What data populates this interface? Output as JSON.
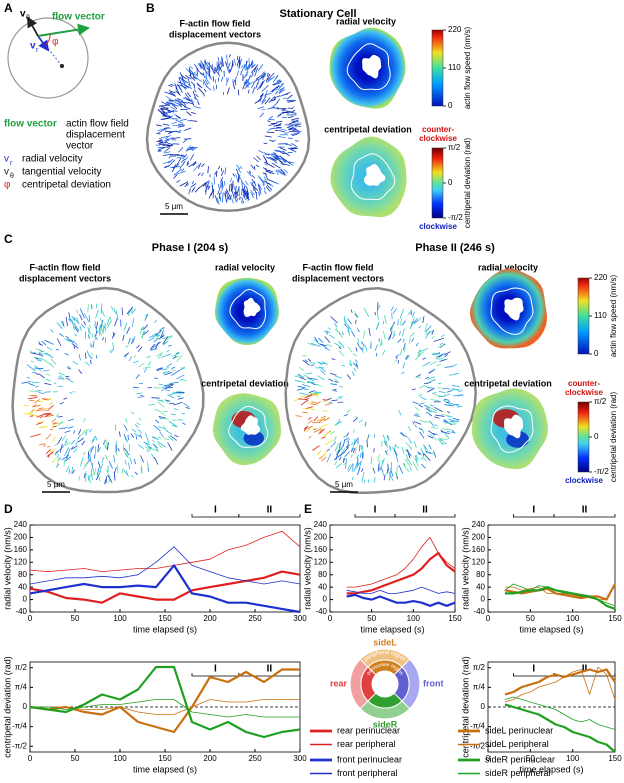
{
  "panel_a": {
    "label": "A",
    "diagram": {
      "vt": {
        "symbol": "v",
        "sub": "θ"
      },
      "vr": {
        "symbol": "v",
        "sub": "r"
      },
      "flow_vector": "flow vector",
      "phi": "φ"
    },
    "legend": [
      {
        "symbol": "flow vector",
        "text": [
          "actin flow field",
          "displacement",
          "vector"
        ]
      },
      {
        "symbol": "v",
        "sub": "r",
        "text": [
          "radial velocity"
        ]
      },
      {
        "symbol": "v",
        "sub": "θ",
        "text": [
          "tangential velocity"
        ]
      },
      {
        "symbol": "φ",
        "text": [
          "centripetal deviation"
        ]
      }
    ]
  },
  "panel_b": {
    "label": "B",
    "title": "Stationary Cell",
    "flow_title": [
      "F-actin flow field",
      "displacement vectors"
    ],
    "radial_title": "radial velocity",
    "deviation_title": "centripetal deviation",
    "scale": "5 µm"
  },
  "panel_c": {
    "label": "C",
    "phases": [
      {
        "title": "Phase I (204 s)",
        "flow_title": [
          "F-actin flow field",
          "displacement vectors"
        ],
        "radial_title": "radial velocity",
        "deviation_title": "centripetal deviation",
        "scale": "5 µm"
      },
      {
        "title": "Phase II (246 s)",
        "flow_title": [
          "F-actin flow field",
          "displacement vectors"
        ],
        "radial_title": "radial velocity",
        "deviation_title": "centripetal deviation",
        "scale": "5 µm"
      }
    ]
  },
  "colorbars": {
    "speed": {
      "label": "actin flow speed (nm/s)",
      "lim": [
        0,
        220
      ],
      "ticks": [
        0,
        110,
        220
      ]
    },
    "deviation": {
      "label": "centripetal deviation (rad)",
      "lim": [
        -1.5708,
        1.5708
      ],
      "ticks": [
        {
          "value": 1.5708,
          "label": "π/2"
        },
        0,
        {
          "value": -1.5708,
          "label": "-π/2"
        }
      ],
      "top_label": [
        "counter-",
        "clockwise"
      ],
      "bottom_label": "clockwise"
    }
  },
  "panel_d": {
    "label": "D"
  },
  "panel_e": {
    "label": "E",
    "regions": {
      "sideL": "sideL",
      "sideR": "sideR",
      "rear": "rear",
      "front": "front",
      "peripheral": "peripheral region",
      "perinuclear": "perinuclear region"
    }
  },
  "chart_data": [
    {
      "type": "line",
      "x": [
        0,
        20,
        40,
        60,
        80,
        100,
        120,
        140,
        160,
        180,
        200,
        220,
        240,
        260,
        280,
        300
      ],
      "xlim": [
        0,
        300
      ],
      "xticks": [
        0,
        50,
        100,
        150,
        200,
        250,
        300
      ],
      "ylim": [
        -40,
        240
      ],
      "yticks": [
        -40,
        0,
        40,
        80,
        120,
        160,
        200,
        240
      ],
      "xlabel": "time elapsed (s)",
      "ylabel": "radial velocity (nm/s)",
      "phases": [
        {
          "label": "I",
          "range": [
            180,
            232
          ]
        },
        {
          "label": "II",
          "range": [
            232,
            300
          ]
        }
      ],
      "series": [
        {
          "name": "rear perinuclear",
          "color": "#e02020",
          "linewidth": 2.2,
          "values": [
            35,
            25,
            5,
            0,
            -10,
            20,
            10,
            0,
            0,
            30,
            40,
            50,
            60,
            70,
            90,
            80
          ]
        },
        {
          "name": "rear peripheral",
          "color": "#e02020",
          "linewidth": 0.8,
          "values": [
            95,
            90,
            95,
            100,
            90,
            95,
            100,
            100,
            110,
            120,
            130,
            160,
            175,
            200,
            220,
            170
          ]
        },
        {
          "name": "front perinuclear",
          "color": "#2030d0",
          "linewidth": 2.2,
          "values": [
            20,
            30,
            40,
            50,
            40,
            40,
            45,
            40,
            110,
            20,
            10,
            -10,
            -10,
            -20,
            -30,
            -40
          ]
        },
        {
          "name": "front peripheral",
          "color": "#2030d0",
          "linewidth": 0.8,
          "values": [
            50,
            60,
            70,
            70,
            75,
            70,
            80,
            120,
            170,
            110,
            90,
            70,
            60,
            50,
            60,
            50
          ]
        }
      ]
    },
    {
      "type": "line",
      "x": [
        0,
        20,
        40,
        60,
        80,
        100,
        120,
        140,
        160,
        180,
        200,
        220,
        240,
        260,
        280,
        300
      ],
      "xlim": [
        0,
        300
      ],
      "xticks": [
        0,
        50,
        100,
        150,
        200,
        250,
        300
      ],
      "ylim": [
        -1.8,
        1.8
      ],
      "yticks": [
        {
          "value": 1.5708,
          "label": "π/2"
        },
        {
          "value": 0.7854,
          "label": "π/4"
        },
        0,
        {
          "value": -0.7854,
          "label": "-π/4"
        },
        {
          "value": -1.5708,
          "label": "-π/2"
        }
      ],
      "xlabel": "time elapsed (s)",
      "ylabel": "centripetal deviation (rad)",
      "zero_line": true,
      "phases": [
        {
          "label": "I",
          "range": [
            180,
            232
          ]
        },
        {
          "label": "II",
          "range": [
            232,
            300
          ]
        }
      ],
      "series": [
        {
          "name": "sideL perinuclear",
          "color": "#c87010",
          "linewidth": 2.2,
          "values": [
            0,
            -0.1,
            0,
            -0.2,
            -0.3,
            0,
            -0.6,
            -0.8,
            -1.0,
            0,
            1.2,
            1.0,
            1.4,
            1.0,
            1.5,
            1.5
          ]
        },
        {
          "name": "sideL peripheral",
          "color": "#c87010",
          "linewidth": 0.8,
          "values": [
            0,
            0,
            0,
            -0.1,
            -0.1,
            0,
            -0.2,
            -0.3,
            -0.3,
            0,
            0.3,
            0.2,
            0.2,
            0.3,
            0.3,
            0.3
          ]
        },
        {
          "name": "sideR perinuclear",
          "color": "#20a020",
          "linewidth": 2.2,
          "values": [
            0,
            -0.1,
            -0.2,
            0.1,
            0.5,
            0.3,
            0.7,
            1.6,
            1.6,
            -0.6,
            -0.9,
            -0.6,
            -1.0,
            -1.2,
            -1.0,
            -0.9
          ]
        },
        {
          "name": "sideR peripheral",
          "color": "#20a020",
          "linewidth": 0.8,
          "values": [
            0,
            0,
            -0.1,
            0,
            0.1,
            0.1,
            0.2,
            0.3,
            0.3,
            -0.2,
            -0.3,
            -0.4,
            -0.3,
            -0.4,
            -0.4,
            -0.4
          ]
        }
      ]
    },
    {
      "type": "line",
      "x": [
        20,
        30,
        40,
        50,
        60,
        70,
        80,
        90,
        100,
        110,
        120,
        130,
        140,
        150
      ],
      "xlim": [
        0,
        150
      ],
      "xticks": [
        0,
        50,
        100,
        150
      ],
      "ylim": [
        -40,
        240
      ],
      "yticks": [
        -40,
        0,
        40,
        80,
        120,
        160,
        200,
        240
      ],
      "xlabel": "time elapsed (s)",
      "ylabel": "radial velocity (nm/s)",
      "phases": [
        {
          "label": "I",
          "range": [
            30,
            78
          ]
        },
        {
          "label": "II",
          "range": [
            78,
            150
          ]
        }
      ],
      "series": [
        {
          "color": "#e02020",
          "linewidth": 2.2,
          "values": [
            20,
            20,
            25,
            30,
            40,
            50,
            60,
            70,
            80,
            100,
            130,
            150,
            110,
            90
          ]
        },
        {
          "color": "#e02020",
          "linewidth": 0.8,
          "values": [
            40,
            40,
            45,
            50,
            60,
            70,
            80,
            100,
            130,
            170,
            200,
            150,
            120,
            100
          ]
        },
        {
          "color": "#2030d0",
          "linewidth": 2.2,
          "values": [
            10,
            15,
            5,
            0,
            10,
            0,
            -10,
            -10,
            -5,
            -10,
            -20,
            -10,
            -20,
            -10
          ]
        },
        {
          "color": "#2030d0",
          "linewidth": 0.8,
          "values": [
            30,
            25,
            20,
            20,
            30,
            20,
            20,
            25,
            30,
            40,
            30,
            20,
            25,
            20
          ]
        }
      ]
    },
    {
      "type": "line",
      "x": [
        20,
        30,
        40,
        50,
        60,
        70,
        80,
        90,
        100,
        110,
        120,
        130,
        140,
        150
      ],
      "xlim": [
        0,
        150
      ],
      "xticks": [
        0,
        50,
        100,
        150
      ],
      "ylim": [
        -40,
        240
      ],
      "yticks": [
        -40,
        0,
        40,
        80,
        120,
        160,
        200,
        240
      ],
      "xlabel": "time elapsed (s)",
      "ylabel": "radial velocity (nm/s)",
      "phases": [
        {
          "label": "I",
          "range": [
            30,
            78
          ]
        },
        {
          "label": "II",
          "range": [
            78,
            150
          ]
        }
      ],
      "series": [
        {
          "color": "#c87010",
          "linewidth": 2.2,
          "values": [
            30,
            25,
            20,
            25,
            30,
            35,
            20,
            15,
            10,
            5,
            10,
            10,
            0,
            50
          ]
        },
        {
          "color": "#c87010",
          "linewidth": 0.8,
          "values": [
            40,
            40,
            30,
            35,
            40,
            20,
            20,
            20,
            15,
            10,
            5,
            0,
            0,
            50
          ]
        },
        {
          "color": "#20a020",
          "linewidth": 2.2,
          "values": [
            20,
            20,
            25,
            30,
            30,
            40,
            30,
            25,
            20,
            15,
            10,
            0,
            -20,
            -30
          ]
        },
        {
          "color": "#20a020",
          "linewidth": 0.8,
          "values": [
            30,
            50,
            40,
            30,
            45,
            40,
            30,
            20,
            20,
            10,
            10,
            0,
            -10,
            -20
          ]
        }
      ]
    },
    {
      "type": "line",
      "x": [
        20,
        30,
        40,
        50,
        60,
        70,
        80,
        90,
        100,
        110,
        120,
        130,
        140,
        150
      ],
      "xlim": [
        0,
        150
      ],
      "xticks": [
        0,
        50,
        100,
        150
      ],
      "ylim": [
        -1.8,
        1.8
      ],
      "yticks": [
        {
          "value": 1.5708,
          "label": "π/2"
        },
        {
          "value": 0.7854,
          "label": "π/4"
        },
        0,
        {
          "value": -0.7854,
          "label": "-π/4"
        },
        {
          "value": -1.5708,
          "label": "-π/2"
        }
      ],
      "xlabel": "time elapsed (s)",
      "ylabel": "centripetal deviation (rad)",
      "zero_line": true,
      "phases": [
        {
          "label": "I",
          "range": [
            30,
            78
          ]
        },
        {
          "label": "II",
          "range": [
            78,
            150
          ]
        }
      ],
      "series": [
        {
          "color": "#c87010",
          "linewidth": 2.2,
          "values": [
            0.5,
            0.6,
            0.8,
            0.9,
            1.0,
            1.2,
            1.3,
            1.2,
            1.3,
            1.4,
            1.5,
            1.4,
            1.5,
            1.0
          ]
        },
        {
          "color": "#c87010",
          "linewidth": 0.8,
          "values": [
            0.2,
            0.3,
            0.5,
            0.6,
            0.8,
            0.9,
            1.0,
            1.2,
            1.4,
            1.5,
            0.5,
            1.6,
            1.3,
            0.3
          ]
        },
        {
          "color": "#20a020",
          "linewidth": 2.2,
          "values": [
            0.1,
            0,
            -0.1,
            -0.2,
            -0.3,
            -0.5,
            -0.7,
            -0.8,
            -1.0,
            -1.1,
            -1.2,
            -1.4,
            -1.5,
            -1.8
          ]
        },
        {
          "color": "#20a020",
          "linewidth": 0.8,
          "values": [
            0.3,
            0.4,
            0.3,
            0.2,
            0.1,
            0,
            -0.1,
            -0.3,
            -0.5,
            -0.6,
            -0.5,
            -0.7,
            -0.8,
            -0.9
          ]
        }
      ]
    }
  ]
}
